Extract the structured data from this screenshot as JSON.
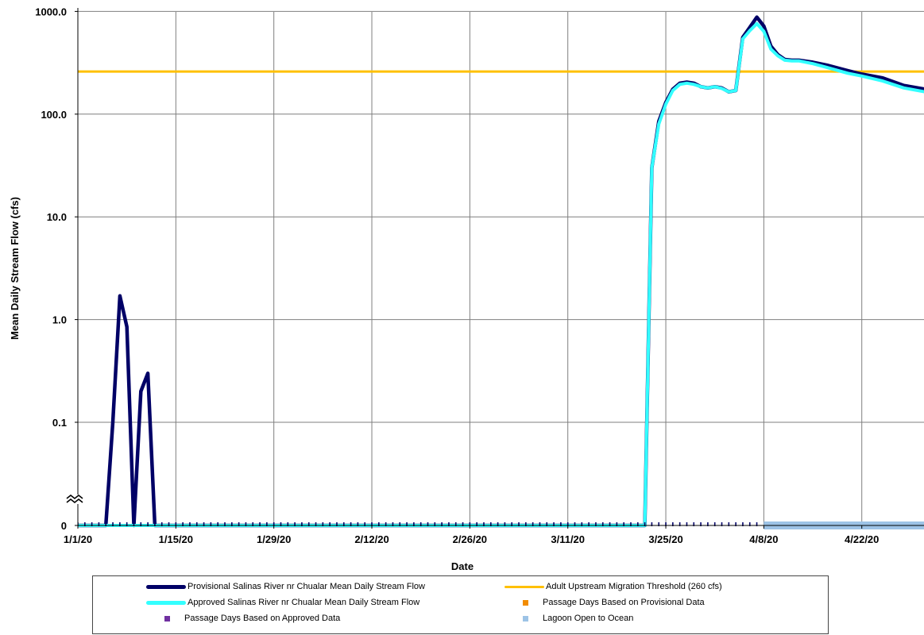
{
  "chart_data": {
    "type": "line",
    "title": "",
    "xlabel": "Date",
    "ylabel": "Mean Daily Stream Flow (cfs)",
    "y_scale": "log",
    "y_ticks": [
      "1000.0",
      "100.0",
      "10.0",
      "1.0",
      "0.1",
      "0"
    ],
    "y_axis_break": true,
    "x_ticks": [
      "1/1/20",
      "1/15/20",
      "1/29/20",
      "2/12/20",
      "2/26/20",
      "3/11/20",
      "3/25/20",
      "4/8/20",
      "4/22/20"
    ],
    "xlim": [
      "2020-01-01",
      "2020-05-01"
    ],
    "ylim": [
      0,
      1000
    ],
    "grid": true,
    "legend_position": "bottom",
    "threshold": {
      "name": "Adult Upstream Migration Threshold (260 cfs)",
      "value": 260,
      "color": "#FFC000"
    },
    "series": [
      {
        "name": "Provisional Salinas River nr Chualar Mean Daily Stream Flow",
        "color": "#000066",
        "points": [
          [
            "2020-01-01",
            0
          ],
          [
            "2020-01-05",
            0
          ],
          [
            "2020-01-06",
            0.1
          ],
          [
            "2020-01-07",
            1.7
          ],
          [
            "2020-01-08",
            0.85
          ],
          [
            "2020-01-09",
            0
          ],
          [
            "2020-01-10",
            0.2
          ],
          [
            "2020-01-11",
            0.3
          ],
          [
            "2020-01-12",
            0
          ],
          [
            "2020-03-22",
            0
          ],
          [
            "2020-03-23",
            30
          ],
          [
            "2020-03-24",
            85
          ],
          [
            "2020-03-25",
            130
          ],
          [
            "2020-03-26",
            175
          ],
          [
            "2020-03-27",
            200
          ],
          [
            "2020-03-28",
            205
          ],
          [
            "2020-03-29",
            200
          ],
          [
            "2020-03-30",
            185
          ],
          [
            "2020-03-31",
            180
          ],
          [
            "2020-04-01",
            185
          ],
          [
            "2020-04-02",
            180
          ],
          [
            "2020-04-03",
            165
          ],
          [
            "2020-04-04",
            170
          ],
          [
            "2020-04-05",
            560
          ],
          [
            "2020-04-06",
            700
          ],
          [
            "2020-04-07",
            880
          ],
          [
            "2020-04-08",
            720
          ],
          [
            "2020-04-09",
            460
          ],
          [
            "2020-04-10",
            380
          ],
          [
            "2020-04-11",
            340
          ],
          [
            "2020-04-12",
            335
          ],
          [
            "2020-04-13",
            335
          ],
          [
            "2020-04-15",
            320
          ],
          [
            "2020-04-17",
            300
          ],
          [
            "2020-04-20",
            265
          ],
          [
            "2020-04-22",
            245
          ],
          [
            "2020-04-25",
            225
          ],
          [
            "2020-04-28",
            190
          ],
          [
            "2020-05-01",
            175
          ]
        ]
      },
      {
        "name": "Approved Salinas River nr Chualar Mean Daily Stream Flow",
        "color": "#33FFFF",
        "points": [
          [
            "2020-01-01",
            0
          ],
          [
            "2020-03-22",
            0
          ],
          [
            "2020-03-23",
            30
          ],
          [
            "2020-03-24",
            80
          ],
          [
            "2020-03-25",
            125
          ],
          [
            "2020-03-26",
            170
          ],
          [
            "2020-03-27",
            195
          ],
          [
            "2020-03-28",
            200
          ],
          [
            "2020-03-29",
            195
          ],
          [
            "2020-03-30",
            185
          ],
          [
            "2020-03-31",
            180
          ],
          [
            "2020-04-01",
            185
          ],
          [
            "2020-04-02",
            178
          ],
          [
            "2020-04-03",
            165
          ],
          [
            "2020-04-04",
            170
          ],
          [
            "2020-04-05",
            540
          ],
          [
            "2020-04-06",
            650
          ],
          [
            "2020-04-07",
            760
          ],
          [
            "2020-04-08",
            640
          ],
          [
            "2020-04-09",
            430
          ],
          [
            "2020-04-10",
            370
          ],
          [
            "2020-04-11",
            335
          ],
          [
            "2020-04-12",
            330
          ],
          [
            "2020-04-13",
            330
          ],
          [
            "2020-04-15",
            310
          ],
          [
            "2020-04-17",
            285
          ],
          [
            "2020-04-20",
            250
          ],
          [
            "2020-04-22",
            235
          ],
          [
            "2020-04-25",
            210
          ],
          [
            "2020-04-28",
            180
          ],
          [
            "2020-05-01",
            165
          ]
        ]
      },
      {
        "name": "Passage Days Based on Provisional Data",
        "color": "#F28C00",
        "marker": "square",
        "dates": []
      },
      {
        "name": "Passage Days Based on Approved Data",
        "color": "#7030A0",
        "marker": "square",
        "dates": []
      },
      {
        "name": "Lagoon Open to Ocean",
        "color": "#9DC3E6",
        "marker": "square",
        "start": "2020-04-08",
        "end": "2020-05-01"
      }
    ],
    "zero_markers": {
      "color": "#000066",
      "start": "2020-01-01",
      "end": "2020-04-07",
      "spacing_days": 1
    }
  }
}
